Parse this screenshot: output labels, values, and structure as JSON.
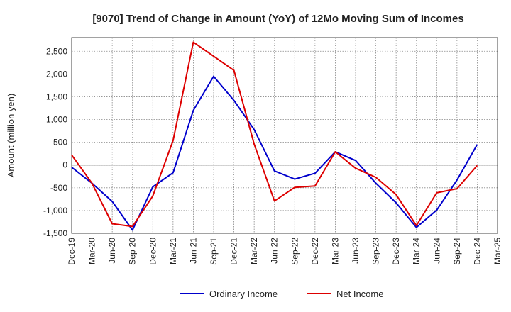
{
  "chart_data": {
    "type": "line",
    "title": "[9070]  Trend of Change in Amount (YoY) of 12Mo Moving Sum of Incomes",
    "xlabel": "",
    "ylabel": "Amount (million yen)",
    "ylim": [
      -1500,
      2800
    ],
    "yticks": [
      -1500,
      -1000,
      -500,
      0,
      500,
      1000,
      1500,
      2000,
      2500
    ],
    "ytick_labels": [
      "-1,500",
      "-1,000",
      "-500",
      "0",
      "500",
      "1,000",
      "1,500",
      "2,000",
      "2,500"
    ],
    "categories": [
      "Dec-19",
      "Mar-20",
      "Jun-20",
      "Sep-20",
      "Dec-20",
      "Mar-21",
      "Jun-21",
      "Sep-21",
      "Dec-21",
      "Mar-22",
      "Jun-22",
      "Sep-22",
      "Dec-22",
      "Mar-23",
      "Jun-23",
      "Sep-23",
      "Dec-23",
      "Mar-24",
      "Jun-24",
      "Sep-24",
      "Dec-24",
      "Mar-25"
    ],
    "grid": true,
    "legend_position": "bottom",
    "series": [
      {
        "name": "Ordinary Income",
        "color": "#0000cc",
        "values": [
          -50,
          -400,
          -800,
          -1430,
          -480,
          -170,
          1200,
          1950,
          1420,
          780,
          -130,
          -310,
          -180,
          290,
          100,
          -400,
          -830,
          -1370,
          -990,
          -330,
          450,
          null
        ]
      },
      {
        "name": "Net Income",
        "color": "#dd0000",
        "values": [
          220,
          -400,
          -1290,
          -1350,
          -680,
          540,
          2700,
          2390,
          2080,
          460,
          -790,
          -490,
          -460,
          290,
          -70,
          -270,
          -650,
          -1330,
          -610,
          -520,
          -10,
          null
        ]
      }
    ]
  }
}
